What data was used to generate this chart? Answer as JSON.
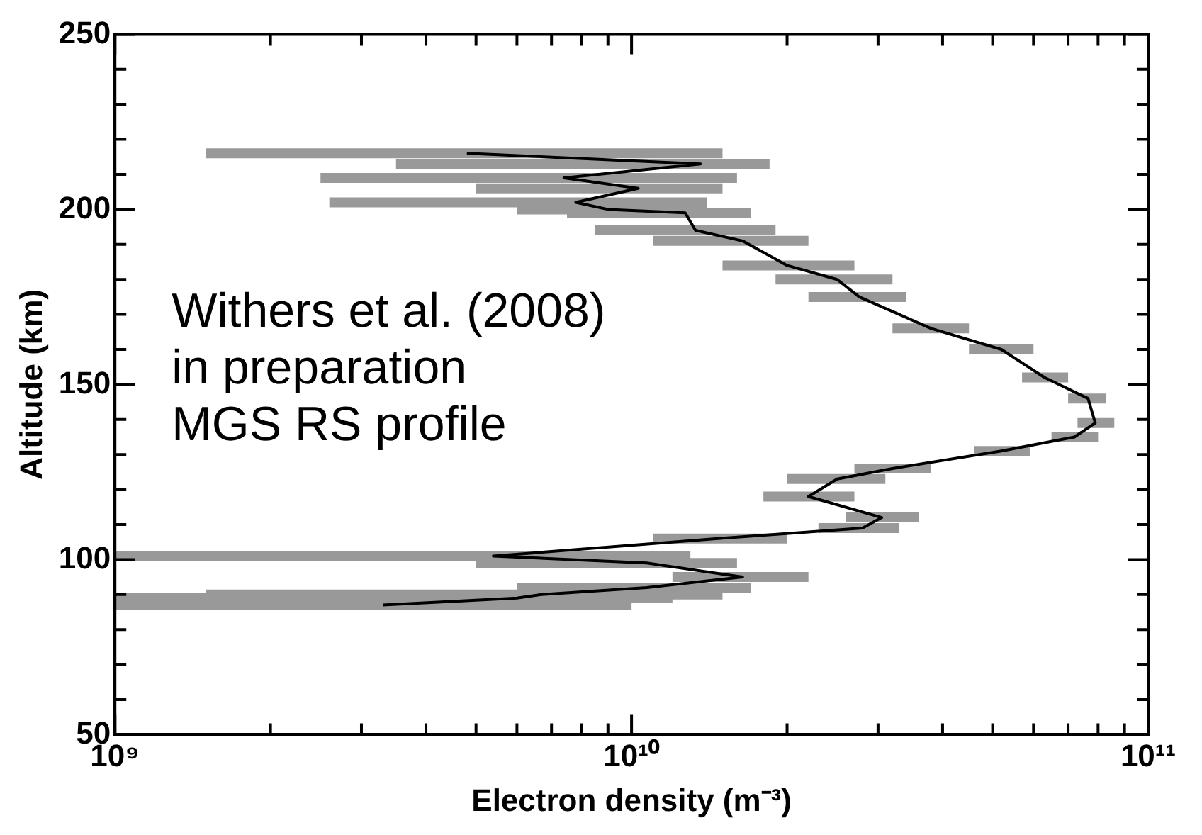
{
  "chart_data": {
    "type": "line",
    "xlabel": "Electron density (m⁻³)",
    "ylabel": "Altitude (km)",
    "annotations": [
      "Withers et al. (2008)\nin preparation\nMGS RS profile"
    ],
    "log": "x",
    "grid": false,
    "legend": false,
    "marker": "none",
    "line_style": "solid",
    "xlim": [
      1000000000.0,
      100000000000.0
    ],
    "xticks": [
      {
        "value": 1000000000.0,
        "label": "10⁹"
      },
      {
        "value": 2000000000.0,
        "label": null
      },
      {
        "value": 3000000000.0,
        "label": null
      },
      {
        "value": 4000000000.0,
        "label": null
      },
      {
        "value": 5000000000.0,
        "label": null
      },
      {
        "value": 6000000000.0,
        "label": null
      },
      {
        "value": 7000000000.0,
        "label": null
      },
      {
        "value": 8000000000.0,
        "label": null
      },
      {
        "value": 9000000000.0,
        "label": null
      },
      {
        "value": 10000000000.0,
        "label": "10¹⁰"
      },
      {
        "value": 20000000000.0,
        "label": null
      },
      {
        "value": 30000000000.0,
        "label": null
      },
      {
        "value": 40000000000.0,
        "label": null
      },
      {
        "value": 50000000000.0,
        "label": null
      },
      {
        "value": 60000000000.0,
        "label": null
      },
      {
        "value": 70000000000.0,
        "label": null
      },
      {
        "value": 80000000000.0,
        "label": null
      },
      {
        "value": 90000000000.0,
        "label": null
      },
      {
        "value": 100000000000.0,
        "label": "10¹¹"
      }
    ],
    "ylim": [
      50,
      250
    ],
    "yticks": [
      50,
      {
        "value": 60,
        "label": null
      },
      {
        "value": 70,
        "label": null
      },
      {
        "value": 80,
        "label": null
      },
      {
        "value": 90,
        "label": null
      },
      100,
      {
        "value": 110,
        "label": null
      },
      {
        "value": 120,
        "label": null
      },
      {
        "value": 130,
        "label": null
      },
      {
        "value": 140,
        "label": null
      },
      150,
      {
        "value": 160,
        "label": null
      },
      {
        "value": 170,
        "label": null
      },
      {
        "value": 180,
        "label": null
      },
      {
        "value": 190,
        "label": null
      },
      200,
      {
        "value": 210,
        "label": null
      },
      {
        "value": 220,
        "label": null
      },
      {
        "value": 230,
        "label": null
      },
      {
        "value": 240,
        "label": null
      },
      250
    ],
    "series": [
      {
        "color": "#000000",
        "x": [
          4800000000.0,
          13600000000.0,
          7400000000.0,
          10300000000.0,
          7800000000.0,
          9000000000.0,
          12700000000.0,
          13300000000.0,
          16400000000.0,
          20000000000.0,
          25000000000.0,
          27600000000.0,
          38000000000.0,
          52000000000.0,
          63000000000.0,
          76500000000.0,
          79000000000.0,
          72000000000.0,
          52000000000.0,
          32000000000.0,
          25000000000.0,
          22000000000.0,
          30500000000.0,
          28000000000.0,
          14700000000.0,
          5400000000.0,
          10700000000.0,
          16400000000.0,
          10700000000.0,
          6700000000.0,
          6000000000.0,
          3300000000.0
        ],
        "values": [
          216,
          213,
          209,
          206,
          202,
          200,
          199,
          194,
          191,
          184,
          180,
          175,
          166,
          160,
          152,
          146,
          139,
          135,
          131,
          126,
          123,
          118,
          112,
          109,
          106,
          101,
          99,
          95,
          92,
          90,
          89,
          87
        ],
        "xerrors": [
          [
            1500000000.0,
            15000000000.0
          ],
          [
            3500000000.0,
            18500000000.0
          ],
          [
            2500000000.0,
            16000000000.0
          ],
          [
            5000000000.0,
            15000000000.0
          ],
          [
            2600000000.0,
            14000000000.0
          ],
          [
            6000000000.0,
            14000000000.0
          ],
          [
            7500000000.0,
            17000000000.0
          ],
          [
            8500000000.0,
            19000000000.0
          ],
          [
            11000000000.0,
            22000000000.0
          ],
          [
            15000000000.0,
            27000000000.0
          ],
          [
            19000000000.0,
            32000000000.0
          ],
          [
            22000000000.0,
            34000000000.0
          ],
          [
            32000000000.0,
            45000000000.0
          ],
          [
            45000000000.0,
            60000000000.0
          ],
          [
            57000000000.0,
            70000000000.0
          ],
          [
            70000000000.0,
            83000000000.0
          ],
          [
            73000000000.0,
            86000000000.0
          ],
          [
            65000000000.0,
            80000000000.0
          ],
          [
            46000000000.0,
            59000000000.0
          ],
          [
            27000000000.0,
            38000000000.0
          ],
          [
            20000000000.0,
            31000000000.0
          ],
          [
            18000000000.0,
            27000000000.0
          ],
          [
            26000000000.0,
            36000000000.0
          ],
          [
            23000000000.0,
            33000000000.0
          ],
          [
            11000000000.0,
            20000000000.0
          ],
          [
            1000000000.0,
            13000000000.0
          ],
          [
            5000000000.0,
            16000000000.0
          ],
          [
            12000000000.0,
            22000000000.0
          ],
          [
            6000000000.0,
            17000000000.0
          ],
          [
            1500000000.0,
            15000000000.0
          ],
          [
            1000000000.0,
            12000000000.0
          ],
          [
            1000000000.0,
            10000000000.0
          ]
        ]
      }
    ]
  }
}
